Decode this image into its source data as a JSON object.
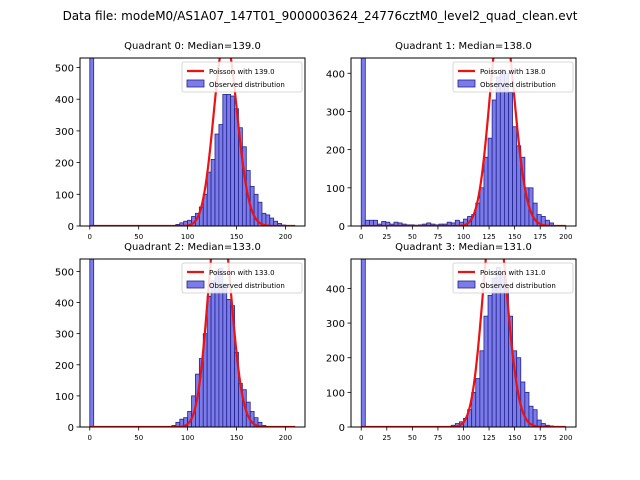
{
  "figure": {
    "suptitle": "Data file: modeM0/AS1A07_147T01_9000003624_24776cztM0_level2_quad_clean.evt"
  },
  "colors": {
    "bar_fill": "#7b7bea",
    "bar_edge": "#24248c",
    "poisson_line": "#ee1111",
    "axis": "#000000"
  },
  "chart_data": [
    {
      "type": "bar",
      "title": "Quadrant 0: Median=139.0",
      "legend": [
        "Poisson with 139.0",
        "Observed distribution"
      ],
      "legend_position": "top-right",
      "xlim": [
        -10,
        220
      ],
      "ylim": [
        0,
        530
      ],
      "xticks": [
        0,
        50,
        100,
        150,
        200
      ],
      "yticks": [
        0,
        100,
        200,
        300,
        400,
        500
      ],
      "bin_width": 4,
      "bars": [
        {
          "x": 0,
          "y": 530
        },
        {
          "x": 88,
          "y": 5
        },
        {
          "x": 92,
          "y": 10
        },
        {
          "x": 96,
          "y": 15
        },
        {
          "x": 100,
          "y": 18
        },
        {
          "x": 104,
          "y": 30
        },
        {
          "x": 108,
          "y": 40
        },
        {
          "x": 112,
          "y": 60
        },
        {
          "x": 116,
          "y": 100
        },
        {
          "x": 120,
          "y": 170
        },
        {
          "x": 124,
          "y": 210
        },
        {
          "x": 128,
          "y": 290
        },
        {
          "x": 132,
          "y": 320
        },
        {
          "x": 136,
          "y": 415
        },
        {
          "x": 140,
          "y": 415
        },
        {
          "x": 144,
          "y": 410
        },
        {
          "x": 148,
          "y": 370
        },
        {
          "x": 152,
          "y": 310
        },
        {
          "x": 156,
          "y": 250
        },
        {
          "x": 160,
          "y": 175
        },
        {
          "x": 164,
          "y": 125
        },
        {
          "x": 168,
          "y": 100
        },
        {
          "x": 172,
          "y": 75
        },
        {
          "x": 176,
          "y": 40
        },
        {
          "x": 180,
          "y": 35
        },
        {
          "x": 184,
          "y": 25
        },
        {
          "x": 188,
          "y": 15
        },
        {
          "x": 192,
          "y": 8
        },
        {
          "x": 196,
          "y": 3
        }
      ],
      "poisson": {
        "lambda": 139.0,
        "scale": 17600,
        "x_range": [
          0,
          210
        ]
      }
    },
    {
      "type": "bar",
      "title": "Quadrant 1: Median=138.0",
      "legend": [
        "Poisson with 138.0",
        "Observed distribution"
      ],
      "legend_position": "top-right",
      "xlim": [
        -10,
        210
      ],
      "ylim": [
        0,
        440
      ],
      "xticks": [
        0,
        25,
        50,
        75,
        100,
        125,
        150,
        175,
        200
      ],
      "yticks": [
        0,
        100,
        200,
        300,
        400
      ],
      "bin_width": 4,
      "bars": [
        {
          "x": 0,
          "y": 440
        },
        {
          "x": 4,
          "y": 15
        },
        {
          "x": 8,
          "y": 15
        },
        {
          "x": 12,
          "y": 15
        },
        {
          "x": 16,
          "y": 5
        },
        {
          "x": 20,
          "y": 12
        },
        {
          "x": 24,
          "y": 10
        },
        {
          "x": 28,
          "y": 5
        },
        {
          "x": 32,
          "y": 10
        },
        {
          "x": 36,
          "y": 8
        },
        {
          "x": 40,
          "y": 5
        },
        {
          "x": 44,
          "y": 3
        },
        {
          "x": 48,
          "y": 3
        },
        {
          "x": 52,
          "y": 2
        },
        {
          "x": 56,
          "y": 3
        },
        {
          "x": 60,
          "y": 5
        },
        {
          "x": 64,
          "y": 8
        },
        {
          "x": 68,
          "y": 5
        },
        {
          "x": 72,
          "y": 3
        },
        {
          "x": 76,
          "y": 5
        },
        {
          "x": 80,
          "y": 5
        },
        {
          "x": 84,
          "y": 10
        },
        {
          "x": 88,
          "y": 8
        },
        {
          "x": 92,
          "y": 15
        },
        {
          "x": 96,
          "y": 10
        },
        {
          "x": 100,
          "y": 18
        },
        {
          "x": 104,
          "y": 25
        },
        {
          "x": 108,
          "y": 30
        },
        {
          "x": 112,
          "y": 60
        },
        {
          "x": 116,
          "y": 100
        },
        {
          "x": 120,
          "y": 180
        },
        {
          "x": 124,
          "y": 230
        },
        {
          "x": 128,
          "y": 330
        },
        {
          "x": 132,
          "y": 390
        },
        {
          "x": 136,
          "y": 410
        },
        {
          "x": 140,
          "y": 400
        },
        {
          "x": 144,
          "y": 350
        },
        {
          "x": 148,
          "y": 260
        },
        {
          "x": 152,
          "y": 210
        },
        {
          "x": 156,
          "y": 180
        },
        {
          "x": 160,
          "y": 100
        },
        {
          "x": 164,
          "y": 100
        },
        {
          "x": 168,
          "y": 60
        },
        {
          "x": 172,
          "y": 30
        },
        {
          "x": 176,
          "y": 25
        },
        {
          "x": 180,
          "y": 15
        },
        {
          "x": 184,
          "y": 8
        }
      ],
      "poisson": {
        "lambda": 138.0,
        "scale": 16750,
        "x_range": [
          0,
          200
        ]
      }
    },
    {
      "type": "bar",
      "title": "Quadrant 2: Median=133.0",
      "legend": [
        "Poisson with 133.0",
        "Observed distribution"
      ],
      "legend_position": "top-right",
      "xlim": [
        -10,
        220
      ],
      "ylim": [
        0,
        540
      ],
      "xticks": [
        0,
        50,
        100,
        150,
        200
      ],
      "yticks": [
        0,
        100,
        200,
        300,
        400,
        500
      ],
      "bin_width": 4,
      "bars": [
        {
          "x": 0,
          "y": 540
        },
        {
          "x": 84,
          "y": 5
        },
        {
          "x": 88,
          "y": 15
        },
        {
          "x": 92,
          "y": 25
        },
        {
          "x": 96,
          "y": 30
        },
        {
          "x": 100,
          "y": 50
        },
        {
          "x": 104,
          "y": 100
        },
        {
          "x": 108,
          "y": 170
        },
        {
          "x": 112,
          "y": 220
        },
        {
          "x": 116,
          "y": 300
        },
        {
          "x": 120,
          "y": 420
        },
        {
          "x": 124,
          "y": 470
        },
        {
          "x": 128,
          "y": 500
        },
        {
          "x": 132,
          "y": 510
        },
        {
          "x": 136,
          "y": 460
        },
        {
          "x": 140,
          "y": 410
        },
        {
          "x": 144,
          "y": 390
        },
        {
          "x": 148,
          "y": 240
        },
        {
          "x": 152,
          "y": 140
        },
        {
          "x": 156,
          "y": 120
        },
        {
          "x": 160,
          "y": 80
        },
        {
          "x": 164,
          "y": 50
        },
        {
          "x": 168,
          "y": 30
        },
        {
          "x": 172,
          "y": 15
        },
        {
          "x": 176,
          "y": 5
        }
      ],
      "poisson": {
        "lambda": 133.0,
        "scale": 20800,
        "x_range": [
          0,
          210
        ]
      }
    },
    {
      "type": "bar",
      "title": "Quadrant 3: Median=131.0",
      "legend": [
        "Poisson with 131.0",
        "Observed distribution"
      ],
      "legend_position": "top-right",
      "xlim": [
        -10,
        210
      ],
      "ylim": [
        0,
        485
      ],
      "xticks": [
        0,
        25,
        50,
        75,
        100,
        125,
        150,
        175,
        200
      ],
      "yticks": [
        0,
        100,
        200,
        300,
        400
      ],
      "bin_width": 4,
      "bars": [
        {
          "x": 0,
          "y": 485
        },
        {
          "x": 88,
          "y": 5
        },
        {
          "x": 92,
          "y": 10
        },
        {
          "x": 96,
          "y": 15
        },
        {
          "x": 100,
          "y": 25
        },
        {
          "x": 104,
          "y": 50
        },
        {
          "x": 108,
          "y": 100
        },
        {
          "x": 112,
          "y": 140
        },
        {
          "x": 116,
          "y": 220
        },
        {
          "x": 120,
          "y": 320
        },
        {
          "x": 124,
          "y": 380
        },
        {
          "x": 128,
          "y": 430
        },
        {
          "x": 132,
          "y": 460
        },
        {
          "x": 136,
          "y": 440
        },
        {
          "x": 140,
          "y": 400
        },
        {
          "x": 144,
          "y": 320
        },
        {
          "x": 148,
          "y": 220
        },
        {
          "x": 152,
          "y": 200
        },
        {
          "x": 156,
          "y": 130
        },
        {
          "x": 160,
          "y": 100
        },
        {
          "x": 164,
          "y": 60
        },
        {
          "x": 168,
          "y": 50
        },
        {
          "x": 172,
          "y": 20
        },
        {
          "x": 176,
          "y": 10
        },
        {
          "x": 180,
          "y": 5
        },
        {
          "x": 184,
          "y": 3
        }
      ],
      "poisson": {
        "lambda": 131.0,
        "scale": 18700,
        "x_range": [
          0,
          200
        ]
      }
    }
  ]
}
